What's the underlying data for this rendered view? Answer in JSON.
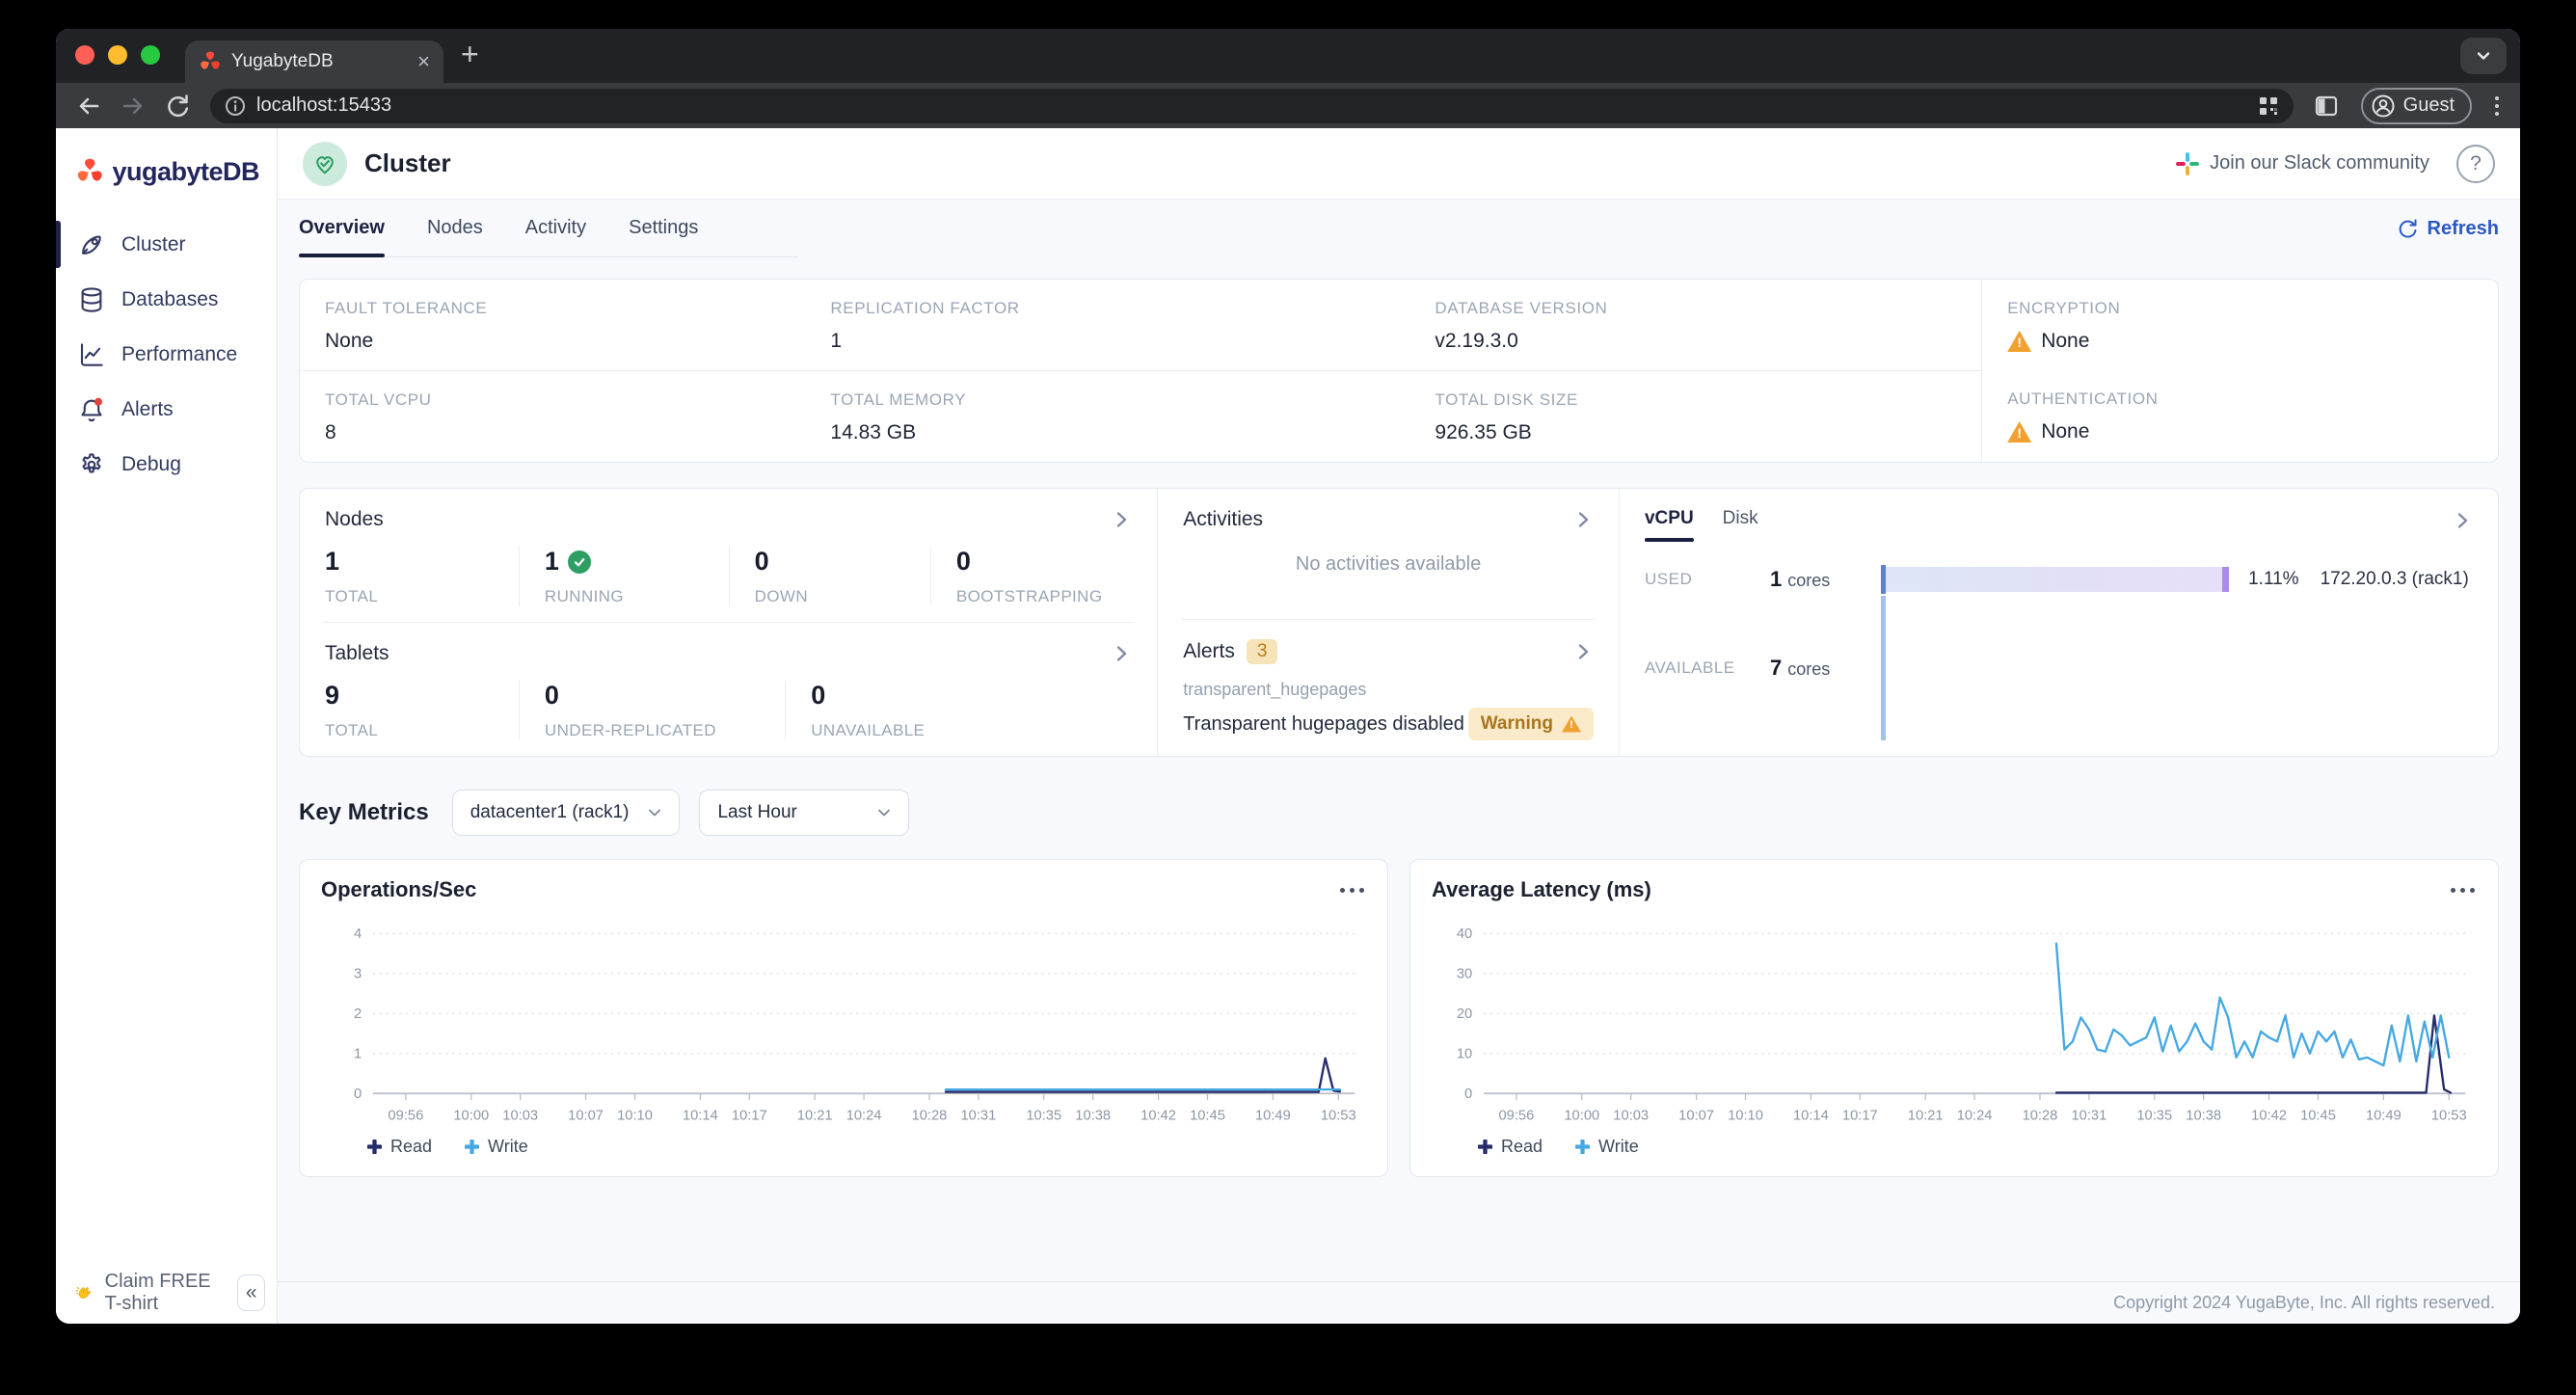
{
  "browser": {
    "tab_title": "YugabyteDB",
    "url": "localhost:15433",
    "profile_label": "Guest"
  },
  "glyphs": {
    "close": "×",
    "new_tab": "+",
    "collapse": "«",
    "help": "?"
  },
  "sidebar": {
    "logo_text": "yugabyteDB",
    "items": [
      {
        "label": "Cluster"
      },
      {
        "label": "Databases"
      },
      {
        "label": "Performance"
      },
      {
        "label": "Alerts"
      },
      {
        "label": "Debug"
      }
    ],
    "claim_label": "Claim FREE T-shirt"
  },
  "header": {
    "title": "Cluster",
    "slack_label": "Join our Slack community"
  },
  "nav": {
    "tabs": [
      {
        "label": "Overview"
      },
      {
        "label": "Nodes"
      },
      {
        "label": "Activity"
      },
      {
        "label": "Settings"
      }
    ],
    "refresh_label": "Refresh"
  },
  "info_cells": [
    {
      "label": "FAULT TOLERANCE",
      "value": "None"
    },
    {
      "label": "REPLICATION FACTOR",
      "value": "1"
    },
    {
      "label": "DATABASE VERSION",
      "value": "v2.19.3.0"
    },
    {
      "label": "ENCRYPTION",
      "value": "None",
      "warning": true
    },
    {
      "label": "TOTAL VCPU",
      "value": "8"
    },
    {
      "label": "TOTAL MEMORY",
      "value": "14.83 GB"
    },
    {
      "label": "TOTAL DISK SIZE",
      "value": "926.35 GB"
    },
    {
      "label": "AUTHENTICATION",
      "value": "None",
      "warning": true
    }
  ],
  "nodes_panel": {
    "title": "Nodes",
    "stats": [
      {
        "value": "1",
        "label": "TOTAL"
      },
      {
        "value": "1",
        "label": "RUNNING",
        "check": true
      },
      {
        "value": "0",
        "label": "DOWN"
      },
      {
        "value": "0",
        "label": "BOOTSTRAPPING"
      }
    ]
  },
  "tablets_panel": {
    "title": "Tablets",
    "stats": [
      {
        "value": "9",
        "label": "TOTAL"
      },
      {
        "value": "0",
        "label": "UNDER-REPLICATED"
      },
      {
        "value": "0",
        "label": "UNAVAILABLE"
      }
    ]
  },
  "activities_panel": {
    "title": "Activities",
    "empty_text": "No activities available"
  },
  "alerts_panel": {
    "title": "Alerts",
    "count": "3",
    "alert_name": "transparent_hugepages",
    "alert_desc": "Transparent hugepages disabled",
    "alert_status": "Warning"
  },
  "resources_panel": {
    "tabs": [
      {
        "label": "vCPU"
      },
      {
        "label": "Disk"
      }
    ],
    "used_label": "USED",
    "used_value": "1",
    "used_unit": "cores",
    "used_pct": "1.11%",
    "used_node": "172.20.0.3 (rack1)",
    "avail_label": "AVAILABLE",
    "avail_value": "7",
    "avail_unit": "cores",
    "bar_colors": {
      "fill_start": "#dde6f5",
      "fill_end": "#e7dff9",
      "cap": "#a98ce6",
      "axis_used": "#5f82cc",
      "axis_available": "#9fc3ea"
    }
  },
  "key_metrics": {
    "title": "Key Metrics",
    "region_value": "datacenter1 (rack1)",
    "range_value": "Last Hour"
  },
  "chart_data": [
    {
      "type": "line",
      "title": "Operations/Sec",
      "xlabel": "",
      "ylabel": "",
      "xlim": [
        0,
        60
      ],
      "ylim": [
        0,
        4.35
      ],
      "yticks": [
        0,
        1,
        2,
        3,
        4
      ],
      "grid": "dotted-horizontal",
      "legend_position": "bottom-left",
      "x_ticks": [
        {
          "label": "09:56",
          "m": 2
        },
        {
          "label": "10:00",
          "m": 6
        },
        {
          "label": "10:03",
          "m": 9
        },
        {
          "label": "10:07",
          "m": 13
        },
        {
          "label": "10:10",
          "m": 16
        },
        {
          "label": "10:14",
          "m": 20
        },
        {
          "label": "10:17",
          "m": 23
        },
        {
          "label": "10:21",
          "m": 27
        },
        {
          "label": "10:24",
          "m": 30
        },
        {
          "label": "10:28",
          "m": 34
        },
        {
          "label": "10:31",
          "m": 37
        },
        {
          "label": "10:35",
          "m": 41
        },
        {
          "label": "10:38",
          "m": 44
        },
        {
          "label": "10:42",
          "m": 48
        },
        {
          "label": "10:45",
          "m": 51
        },
        {
          "label": "10:49",
          "m": 55
        },
        {
          "label": "10:53",
          "m": 59
        }
      ],
      "series": [
        {
          "name": "Read",
          "color": "#262c6b",
          "points": [
            [
              35,
              0.04
            ],
            [
              57.8,
              0.04
            ],
            [
              58.2,
              0.88
            ],
            [
              58.7,
              0.07
            ],
            [
              59.1,
              0.05
            ]
          ]
        },
        {
          "name": "Write",
          "color": "#45a8e3",
          "points": [
            [
              35,
              0.1
            ],
            [
              59.1,
              0.1
            ]
          ]
        }
      ]
    },
    {
      "type": "line",
      "title": "Average Latency (ms)",
      "xlabel": "",
      "ylabel": "",
      "xlim": [
        0,
        60
      ],
      "ylim": [
        0,
        43.5
      ],
      "yticks": [
        0,
        10,
        20,
        30,
        40
      ],
      "grid": "dotted-horizontal",
      "legend_position": "bottom-left",
      "x_ticks": [
        {
          "label": "09:56",
          "m": 2
        },
        {
          "label": "10:00",
          "m": 6
        },
        {
          "label": "10:03",
          "m": 9
        },
        {
          "label": "10:07",
          "m": 13
        },
        {
          "label": "10:10",
          "m": 16
        },
        {
          "label": "10:14",
          "m": 20
        },
        {
          "label": "10:17",
          "m": 23
        },
        {
          "label": "10:21",
          "m": 27
        },
        {
          "label": "10:24",
          "m": 30
        },
        {
          "label": "10:28",
          "m": 34
        },
        {
          "label": "10:31",
          "m": 37
        },
        {
          "label": "10:35",
          "m": 41
        },
        {
          "label": "10:38",
          "m": 44
        },
        {
          "label": "10:42",
          "m": 48
        },
        {
          "label": "10:45",
          "m": 51
        },
        {
          "label": "10:49",
          "m": 55
        },
        {
          "label": "10:53",
          "m": 59
        }
      ],
      "series": [
        {
          "name": "Read",
          "color": "#262c6b",
          "points": [
            [
              35,
              0.2
            ],
            [
              57.6,
              0.2
            ],
            [
              58.1,
              19.5
            ],
            [
              58.7,
              1
            ],
            [
              59.1,
              0.2
            ]
          ]
        },
        {
          "name": "Write",
          "color": "#45a8e3",
          "points": [
            [
              35,
              37.5
            ],
            [
              35.5,
              11
            ],
            [
              36,
              13
            ],
            [
              36.5,
              19
            ],
            [
              37,
              16
            ],
            [
              37.5,
              11
            ],
            [
              38,
              10.5
            ],
            [
              38.5,
              16
            ],
            [
              39,
              14.5
            ],
            [
              39.5,
              12
            ],
            [
              40,
              13
            ],
            [
              40.5,
              14
            ],
            [
              41,
              19
            ],
            [
              41.5,
              10.5
            ],
            [
              42,
              17
            ],
            [
              42.5,
              10.5
            ],
            [
              43,
              13
            ],
            [
              43.5,
              17.5
            ],
            [
              44,
              13
            ],
            [
              44.5,
              11
            ],
            [
              45,
              24
            ],
            [
              45.5,
              19
            ],
            [
              46,
              9
            ],
            [
              46.5,
              13
            ],
            [
              47,
              9
            ],
            [
              47.5,
              15.5
            ],
            [
              48,
              14
            ],
            [
              48.5,
              13
            ],
            [
              49,
              19.5
            ],
            [
              49.5,
              9
            ],
            [
              50,
              15
            ],
            [
              50.5,
              10
            ],
            [
              51,
              15.5
            ],
            [
              51.5,
              13
            ],
            [
              52,
              15.5
            ],
            [
              52.5,
              9
            ],
            [
              53,
              13.5
            ],
            [
              53.5,
              8.5
            ],
            [
              54,
              9
            ],
            [
              54.5,
              8
            ],
            [
              55,
              7
            ],
            [
              55.5,
              17
            ],
            [
              56,
              8
            ],
            [
              56.5,
              19.5
            ],
            [
              57,
              8
            ],
            [
              57.5,
              18
            ],
            [
              58,
              9
            ],
            [
              58.5,
              19.5
            ],
            [
              59,
              9
            ]
          ]
        }
      ]
    }
  ],
  "footer": {
    "copyright": "Copyright 2024 YugaByte, Inc. All rights reserved."
  },
  "colors": {
    "accent_blue": "#2b59c3",
    "brand_navy": "#22265c",
    "warning_orange": "#f0a12f",
    "success_green": "#2f9e63"
  }
}
